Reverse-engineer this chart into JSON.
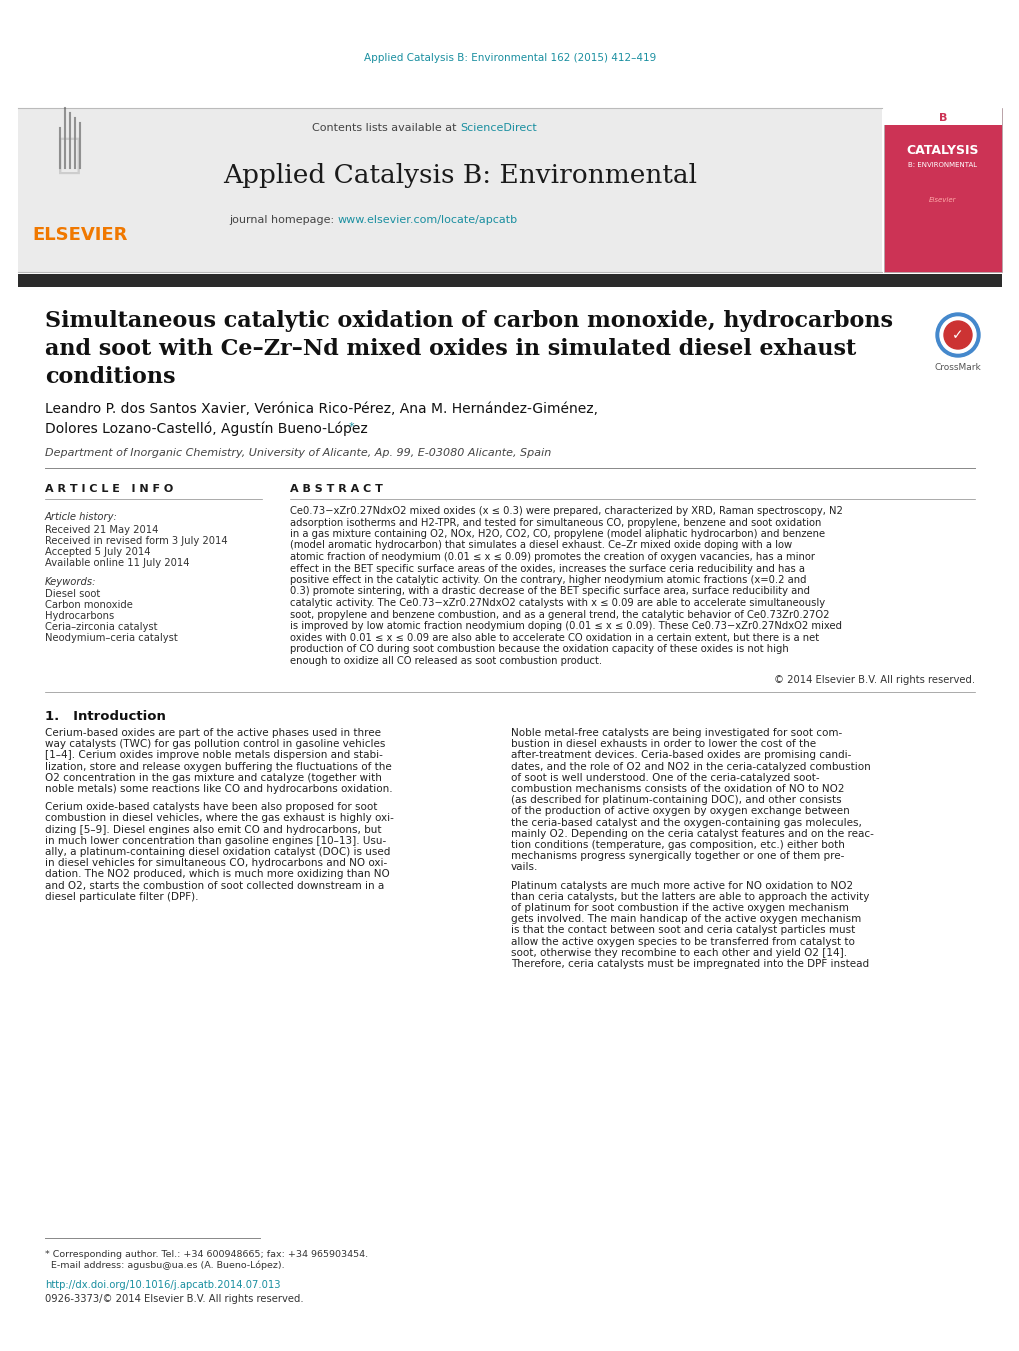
{
  "page_bg": "#ffffff",
  "top_journal_ref": "Applied Catalysis B: Environmental 162 (2015) 412–419",
  "top_journal_color": "#1a8fa0",
  "journal_name": "Applied Catalysis B: Environmental",
  "header_bg": "#ebebeb",
  "contents_text": "Contents lists available at ",
  "sciencedirect_text": "ScienceDirect",
  "sciencedirect_color": "#1a8fa0",
  "homepage_text": "journal homepage: ",
  "homepage_url": "www.elsevier.com/locate/apcatb",
  "homepage_url_color": "#1a8fa0",
  "elsevier_color": "#f07800",
  "paper_title_line1": "Simultaneous catalytic oxidation of carbon monoxide, hydrocarbons",
  "paper_title_line2": "and soot with Ce–Zr–Nd mixed oxides in simulated diesel exhaust",
  "paper_title_line3": "conditions",
  "authors_line1": "Leandro P. dos Santos Xavier, Verónica Rico-Pérez, Ana M. Hernández-Giménez,",
  "authors_line2": "Dolores Lozano-Castelló, Agustín Bueno-López",
  "authors_asterisk": "*",
  "affiliation": "Department of Inorganic Chemistry, University of Alicante, Ap. 99, E-03080 Alicante, Spain",
  "article_info_header": "A R T I C L E   I N F O",
  "abstract_header": "A B S T R A C T",
  "article_history_label": "Article history:",
  "received_text": "Received 21 May 2014",
  "revised_text": "Received in revised form 3 July 2014",
  "accepted_text": "Accepted 5 July 2014",
  "available_text": "Available online 11 July 2014",
  "keywords_label": "Keywords:",
  "keywords": [
    "Diesel soot",
    "Carbon monoxide",
    "Hydrocarbons",
    "Ceria–zirconia catalyst",
    "Neodymium–ceria catalyst"
  ],
  "abstract_lines": [
    "Ce0.73−xZr0.27NdxO2 mixed oxides (x ≤ 0.3) were prepared, characterized by XRD, Raman spectroscopy, N2",
    "adsorption isotherms and H2-TPR, and tested for simultaneous CO, propylene, benzene and soot oxidation",
    "in a gas mixture containing O2, NOx, H2O, CO2, CO, propylene (model aliphatic hydrocarbon) and benzene",
    "(model aromatic hydrocarbon) that simulates a diesel exhaust. Ce–Zr mixed oxide doping with a low",
    "atomic fraction of neodymium (0.01 ≤ x ≤ 0.09) promotes the creation of oxygen vacancies, has a minor",
    "effect in the BET specific surface areas of the oxides, increases the surface ceria reducibility and has a",
    "positive effect in the catalytic activity. On the contrary, higher neodymium atomic fractions (x=0.2 and",
    "0.3) promote sintering, with a drastic decrease of the BET specific surface area, surface reducibility and",
    "catalytic activity. The Ce0.73−xZr0.27NdxO2 catalysts with x ≤ 0.09 are able to accelerate simultaneously",
    "soot, propylene and benzene combustion, and as a general trend, the catalytic behavior of Ce0.73Zr0.27O2",
    "is improved by low atomic fraction neodymium doping (0.01 ≤ x ≤ 0.09). These Ce0.73−xZr0.27NdxO2 mixed",
    "oxides with 0.01 ≤ x ≤ 0.09 are also able to accelerate CO oxidation in a certain extent, but there is a net",
    "production of CO during soot combustion because the oxidation capacity of these oxides is not high",
    "enough to oxidize all CO released as soot combustion product."
  ],
  "copyright_text": "© 2014 Elsevier B.V. All rights reserved.",
  "section1_title": "1.   Introduction",
  "col1_para1_lines": [
    "Cerium-based oxides are part of the active phases used in three",
    "way catalysts (TWC) for gas pollution control in gasoline vehicles",
    "[1–4]. Cerium oxides improve noble metals dispersion and stabi-",
    "lization, store and release oxygen buffering the fluctuations of the",
    "O2 concentration in the gas mixture and catalyze (together with",
    "noble metals) some reactions like CO and hydrocarbons oxidation."
  ],
  "col1_para2_lines": [
    "Cerium oxide-based catalysts have been also proposed for soot",
    "combustion in diesel vehicles, where the gas exhaust is highly oxi-",
    "dizing [5–9]. Diesel engines also emit CO and hydrocarbons, but",
    "in much lower concentration than gasoline engines [10–13]. Usu-",
    "ally, a platinum-containing diesel oxidation catalyst (DOC) is used",
    "in diesel vehicles for simultaneous CO, hydrocarbons and NO oxi-",
    "dation. The NO2 produced, which is much more oxidizing than NO",
    "and O2, starts the combustion of soot collected downstream in a",
    "diesel particulate filter (DPF)."
  ],
  "col2_para1_lines": [
    "Noble metal-free catalysts are being investigated for soot com-",
    "bustion in diesel exhausts in order to lower the cost of the",
    "after-treatment devices. Ceria-based oxides are promising candi-",
    "dates, and the role of O2 and NO2 in the ceria-catalyzed combustion",
    "of soot is well understood. One of the ceria-catalyzed soot-",
    "combustion mechanisms consists of the oxidation of NO to NO2",
    "(as described for platinum-containing DOC), and other consists",
    "of the production of active oxygen by oxygen exchange between",
    "the ceria-based catalyst and the oxygen-containing gas molecules,",
    "mainly O2. Depending on the ceria catalyst features and on the reac-",
    "tion conditions (temperature, gas composition, etc.) either both",
    "mechanisms progress synergically together or one of them pre-",
    "vails."
  ],
  "col2_para2_lines": [
    "Platinum catalysts are much more active for NO oxidation to NO2",
    "than ceria catalysts, but the latters are able to approach the activity",
    "of platinum for soot combustion if the active oxygen mechanism",
    "gets involved. The main handicap of the active oxygen mechanism",
    "is that the contact between soot and ceria catalyst particles must",
    "allow the active oxygen species to be transferred from catalyst to",
    "soot, otherwise they recombine to each other and yield O2 [14].",
    "Therefore, ceria catalysts must be impregnated into the DPF instead"
  ],
  "footnote_line1": "* Corresponding author. Tel.: +34 600948665; fax: +34 965903454.",
  "footnote_line2": "  E-mail address: agusbu@ua.es (A. Bueno-López).",
  "doi_text": "http://dx.doi.org/10.1016/j.apcatb.2014.07.013",
  "doi_color": "#1a8fa0",
  "issn_text": "0926-3373/© 2014 Elsevier B.V. All rights reserved.",
  "dark_bar_color": "#2b2b2b",
  "line_color": "#888888"
}
